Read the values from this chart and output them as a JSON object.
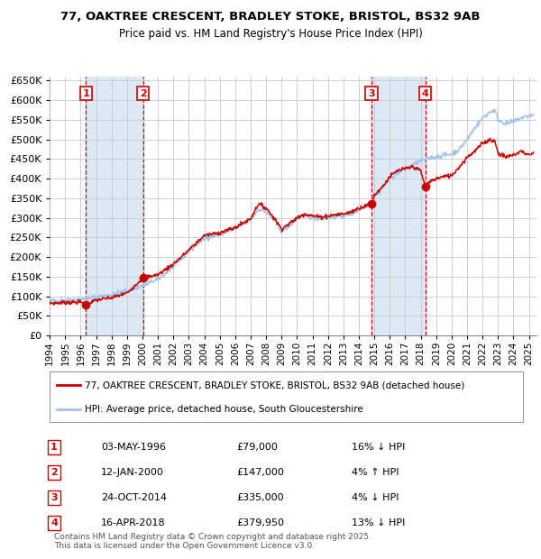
{
  "title_line1": "77, OAKTREE CRESCENT, BRADLEY STOKE, BRISTOL, BS32 9AB",
  "title_line2": "Price paid vs. HM Land Registry's House Price Index (HPI)",
  "sale_dates_dec": [
    1996.35,
    2000.03,
    2014.81,
    2018.29
  ],
  "sale_prices": [
    79000,
    147000,
    335000,
    379950
  ],
  "sale_labels": [
    "1",
    "2",
    "3",
    "4"
  ],
  "vline_shading_pairs": [
    [
      1996.35,
      2000.03
    ],
    [
      2014.81,
      2018.29
    ]
  ],
  "ylim": [
    0,
    660000
  ],
  "yticks": [
    0,
    50000,
    100000,
    150000,
    200000,
    250000,
    300000,
    350000,
    400000,
    450000,
    500000,
    550000,
    600000,
    650000
  ],
  "hpi_color": "#a0c4e8",
  "price_color": "#cc0000",
  "shade_color": "#dce9f5",
  "vline_color": "#cc0000",
  "grid_color": "#c8c8c8",
  "bg_color": "#ffffff",
  "legend_price_label": "77, OAKTREE CRESCENT, BRADLEY STOKE, BRISTOL, BS32 9AB (detached house)",
  "legend_hpi_label": "HPI: Average price, detached house, South Gloucestershire",
  "footnote": "Contains HM Land Registry data © Crown copyright and database right 2025.\nThis data is licensed under the Open Government Licence v3.0.",
  "table_rows": [
    {
      "num": "1",
      "date": "03-MAY-1996",
      "price": "£79,000",
      "hpi": "16% ↓ HPI"
    },
    {
      "num": "2",
      "date": "12-JAN-2000",
      "price": "£147,000",
      "hpi": "4% ↑ HPI"
    },
    {
      "num": "3",
      "date": "24-OCT-2014",
      "price": "£335,000",
      "hpi": "4% ↓ HPI"
    },
    {
      "num": "4",
      "date": "16-APR-2018",
      "price": "£379,950",
      "hpi": "13% ↓ HPI"
    }
  ],
  "xmin": 1994.0,
  "xmax": 2025.5
}
